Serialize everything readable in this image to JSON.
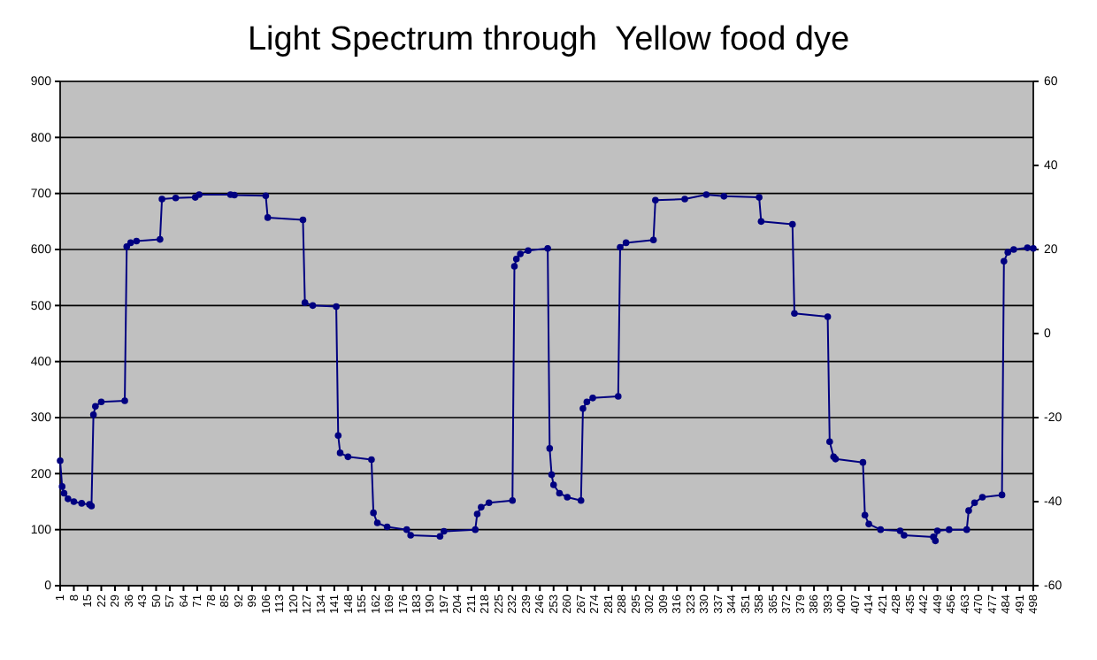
{
  "chart_data": {
    "type": "line",
    "title": "Light Spectrum through  Yellow food dye",
    "xlim": [
      1,
      498
    ],
    "xticks": [
      1,
      8,
      15,
      22,
      29,
      36,
      43,
      50,
      57,
      64,
      71,
      78,
      85,
      92,
      99,
      106,
      113,
      120,
      127,
      134,
      141,
      148,
      155,
      162,
      169,
      176,
      183,
      190,
      197,
      204,
      211,
      218,
      225,
      232,
      239,
      246,
      253,
      260,
      267,
      274,
      281,
      288,
      295,
      302,
      309,
      316,
      323,
      330,
      337,
      344,
      351,
      358,
      365,
      372,
      379,
      386,
      393,
      400,
      407,
      414,
      421,
      428,
      435,
      442,
      449,
      456,
      463,
      470,
      477,
      484,
      491,
      498
    ],
    "ylim": [
      0,
      900
    ],
    "yticks": [
      0,
      100,
      200,
      300,
      400,
      500,
      600,
      700,
      800,
      900
    ],
    "y2lim": [
      -60,
      60
    ],
    "y2ticks": [
      -60,
      -40,
      -20,
      0,
      20,
      40,
      60
    ],
    "grid": "y",
    "marker": "circle",
    "line_style": "solid",
    "series": [
      {
        "color": "#000080",
        "x": [
          1,
          2,
          3,
          5,
          8,
          12,
          16,
          17,
          18,
          19,
          22,
          34,
          35,
          37,
          40,
          52,
          53,
          60,
          70,
          72,
          88,
          90,
          106,
          107,
          125,
          126,
          130,
          142,
          143,
          144,
          148,
          160,
          161,
          163,
          168,
          178,
          180,
          195,
          197,
          213,
          214,
          216,
          220,
          232,
          233,
          234,
          236,
          240,
          250,
          251,
          252,
          253,
          256,
          260,
          267,
          268,
          270,
          273,
          286,
          287,
          290,
          304,
          305,
          320,
          331,
          340,
          358,
          359,
          375,
          376,
          393,
          394,
          396,
          397,
          411,
          412,
          414,
          420,
          430,
          432,
          447,
          448,
          449,
          455,
          464,
          465,
          468,
          472,
          482,
          483,
          485,
          488,
          495,
          498
        ],
        "values": [
          223,
          177,
          165,
          155,
          150,
          147,
          145,
          142,
          305,
          320,
          328,
          330,
          605,
          612,
          615,
          618,
          690,
          692,
          693,
          698,
          698,
          697,
          696,
          657,
          653,
          505,
          500,
          498,
          268,
          237,
          230,
          225,
          130,
          112,
          105,
          100,
          90,
          88,
          97,
          100,
          128,
          140,
          148,
          152,
          570,
          583,
          592,
          598,
          602,
          245,
          198,
          180,
          165,
          158,
          152,
          316,
          328,
          335,
          338,
          604,
          612,
          617,
          688,
          690,
          698,
          695,
          693,
          650,
          645,
          486,
          480,
          257,
          230,
          226,
          220,
          126,
          110,
          100,
          98,
          90,
          87,
          80,
          98,
          100,
          100,
          134,
          148,
          158,
          162,
          579,
          595,
          600,
          603,
          602
        ]
      }
    ]
  }
}
